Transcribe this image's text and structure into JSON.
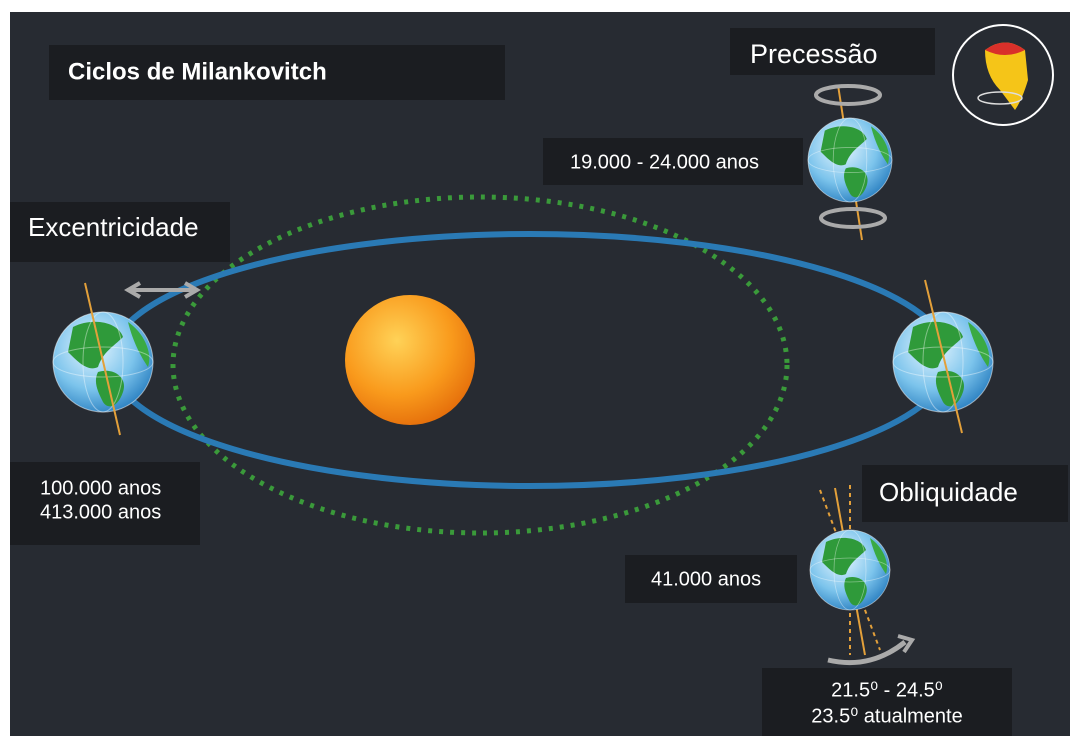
{
  "title": "Ciclos de Milankovitch",
  "precession": {
    "label": "Precessão",
    "period": "19.000 - 24.000 anos"
  },
  "eccentricity": {
    "label": "Excentricidade",
    "periods": [
      "100.000 anos",
      "413.000 anos"
    ]
  },
  "obliquity": {
    "label": "Obliquidade",
    "period": "41.000 anos",
    "range": "21.5⁰ - 24.5⁰",
    "current": "23.5⁰ atualmente"
  }
}
